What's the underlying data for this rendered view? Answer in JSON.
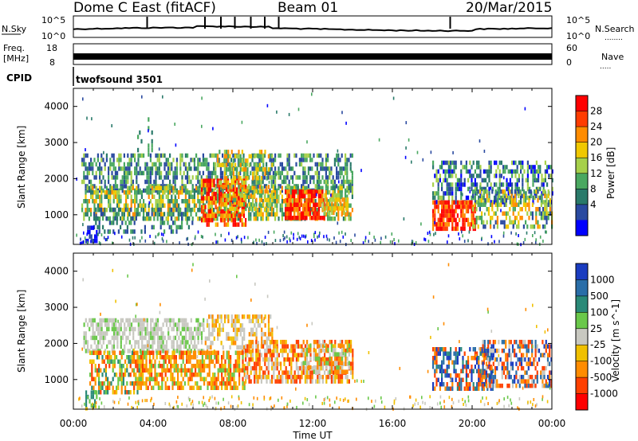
{
  "header": {
    "station": "Dome C East (fitACF)",
    "beam": "Beam 01",
    "date": "20/Mar/2015"
  },
  "nsky_panel": {
    "left_label": "N.Sky",
    "left_ticks": [
      "10^5",
      "10^0"
    ],
    "right_ticks": [
      "10^5",
      "10^0"
    ],
    "right_label": "N.Search",
    "right_marker": "........"
  },
  "freq_panel": {
    "left_label_top": "Freq.",
    "left_label_unit": "[MHz]",
    "left_ticks": [
      "18",
      "8"
    ],
    "right_ticks": [
      "60",
      "0"
    ],
    "right_label": "Nave",
    "right_marker": "....."
  },
  "cpid_panel": {
    "label": "CPID",
    "program": "twofsound 3501"
  },
  "power_panel": {
    "ylabel": "Slant Range [km]",
    "yticks": [
      "4000",
      "3000",
      "2000",
      "1000"
    ],
    "colorbar_label": "Power [dB]",
    "colorbar_ticks": [
      "28",
      "24",
      "20",
      "16",
      "12",
      "8",
      "4"
    ],
    "colorbar_colors": [
      "#ff0000",
      "#ff3c00",
      "#ff8c00",
      "#f0c800",
      "#a6d04a",
      "#4aa860",
      "#2a7a6a",
      "#2a4aa0",
      "#0000ff"
    ]
  },
  "velocity_panel": {
    "ylabel": "Slant Range [km]",
    "yticks": [
      "4000",
      "3000",
      "2000",
      "1000"
    ],
    "colorbar_label": "Velocity [m s^-1]",
    "colorbar_ticks": [
      "1000",
      "500",
      "100",
      "25",
      "-25",
      "-100",
      "-500",
      "-1000"
    ],
    "colorbar_colors": [
      "#1a3cc0",
      "#2a6ea8",
      "#2a8a78",
      "#6ac84a",
      "#c8c8c0",
      "#f0c000",
      "#ff8c00",
      "#ff4000",
      "#ff0000"
    ]
  },
  "time_axis": {
    "xlabel": "Time UT",
    "ticks": [
      "00:00",
      "04:00",
      "08:00",
      "12:00",
      "16:00",
      "20:00",
      "00:00"
    ]
  },
  "chart_data": [
    {
      "type": "heatmap",
      "title": "Power",
      "xlabel": "",
      "ylabel": "Slant Range [km]",
      "xlim": [
        0,
        24
      ],
      "ylim": [
        180,
        4500
      ],
      "legend": "right colorbar",
      "scale": [
        "#0000ff",
        "#2a4aa0",
        "#2a7a6a",
        "#4aa860",
        "#a6d04a",
        "#f0c800",
        "#ff8c00",
        "#ff3c00",
        "#ff0000"
      ],
      "regions": [
        {
          "x": [
            0.5,
            14.0
          ],
          "y": [
            500,
            2700
          ],
          "level": "mixed green-orange"
        },
        {
          "x": [
            6.5,
            8.5
          ],
          "y": [
            700,
            2000
          ],
          "level": "red"
        },
        {
          "x": [
            10.5,
            12.5
          ],
          "y": [
            900,
            1600
          ],
          "level": "red"
        },
        {
          "x": [
            18.0,
            24.0
          ],
          "y": [
            600,
            2500
          ],
          "level": "mixed"
        },
        {
          "x": [
            18.0,
            20.0
          ],
          "y": [
            600,
            1300
          ],
          "level": "red"
        }
      ]
    },
    {
      "type": "heatmap",
      "title": "Velocity",
      "xlabel": "Time UT",
      "ylabel": "Slant Range [km]",
      "xlim": [
        0,
        24
      ],
      "ylim": [
        180,
        4500
      ],
      "legend": "right colorbar",
      "scale": [
        "#ff0000",
        "#ff4000",
        "#ff8c00",
        "#f0c000",
        "#c8c8c0",
        "#6ac84a",
        "#2a8a78",
        "#2a6ea8",
        "#1a3cc0"
      ],
      "regions": [
        {
          "x": [
            0.5,
            6.0
          ],
          "y": [
            1800,
            2700
          ],
          "level": "grey"
        },
        {
          "x": [
            2.0,
            9.0
          ],
          "y": [
            700,
            1800
          ],
          "level": "orange"
        },
        {
          "x": [
            9.0,
            14.0
          ],
          "y": [
            900,
            2000
          ],
          "level": "orange"
        },
        {
          "x": [
            18.0,
            24.0
          ],
          "y": [
            700,
            2100
          ],
          "level": "blue-orange"
        }
      ]
    }
  ]
}
